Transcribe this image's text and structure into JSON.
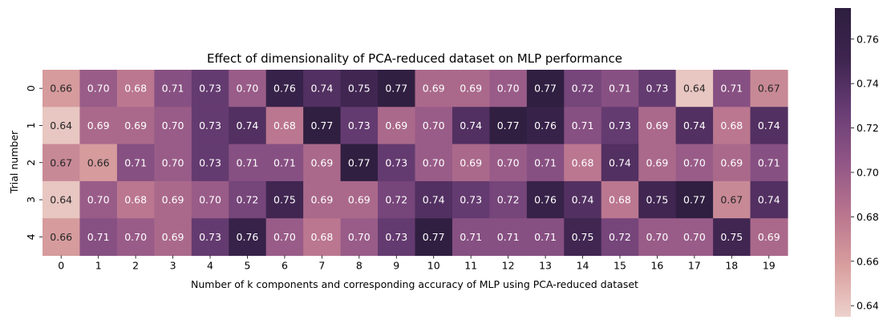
{
  "chart_data": {
    "type": "heatmap",
    "title": "Effect of dimensionality of PCA-reduced dataset on MLP performance",
    "xlabel": "Number of k components and corresponding accuracy of MLP using PCA-reduced dataset",
    "ylabel": "Trial number",
    "x": [
      "0",
      "1",
      "2",
      "3",
      "4",
      "5",
      "6",
      "7",
      "8",
      "9",
      "10",
      "11",
      "12",
      "13",
      "14",
      "15",
      "16",
      "17",
      "18",
      "19"
    ],
    "y": [
      "0",
      "1",
      "2",
      "3",
      "4"
    ],
    "values": [
      [
        0.66,
        0.7,
        0.68,
        0.71,
        0.73,
        0.7,
        0.76,
        0.74,
        0.75,
        0.77,
        0.69,
        0.69,
        0.7,
        0.77,
        0.72,
        0.71,
        0.73,
        0.64,
        0.71,
        0.67
      ],
      [
        0.64,
        0.69,
        0.69,
        0.7,
        0.73,
        0.74,
        0.68,
        0.77,
        0.73,
        0.69,
        0.7,
        0.74,
        0.77,
        0.76,
        0.71,
        0.73,
        0.69,
        0.74,
        0.68,
        0.74
      ],
      [
        0.67,
        0.66,
        0.71,
        0.7,
        0.73,
        0.71,
        0.71,
        0.69,
        0.77,
        0.73,
        0.7,
        0.69,
        0.7,
        0.71,
        0.68,
        0.74,
        0.69,
        0.7,
        0.69,
        0.71
      ],
      [
        0.64,
        0.7,
        0.68,
        0.69,
        0.7,
        0.72,
        0.75,
        0.69,
        0.69,
        0.72,
        0.74,
        0.73,
        0.72,
        0.76,
        0.74,
        0.68,
        0.75,
        0.77,
        0.67,
        0.74
      ],
      [
        0.66,
        0.71,
        0.7,
        0.69,
        0.73,
        0.76,
        0.7,
        0.68,
        0.7,
        0.73,
        0.77,
        0.71,
        0.71,
        0.71,
        0.75,
        0.72,
        0.7,
        0.7,
        0.75,
        0.69
      ]
    ],
    "colorbar": {
      "min": 0.635,
      "max": 0.774,
      "ticks": [
        "0.64",
        "0.66",
        "0.68",
        "0.70",
        "0.72",
        "0.74",
        "0.76"
      ],
      "colors": [
        "#edd1cb",
        "#d89e9e",
        "#b9758e",
        "#915686",
        "#683d74",
        "#3e2550",
        "#2d1e3e"
      ]
    },
    "annotations": "values shown in each cell with 2 decimals"
  }
}
